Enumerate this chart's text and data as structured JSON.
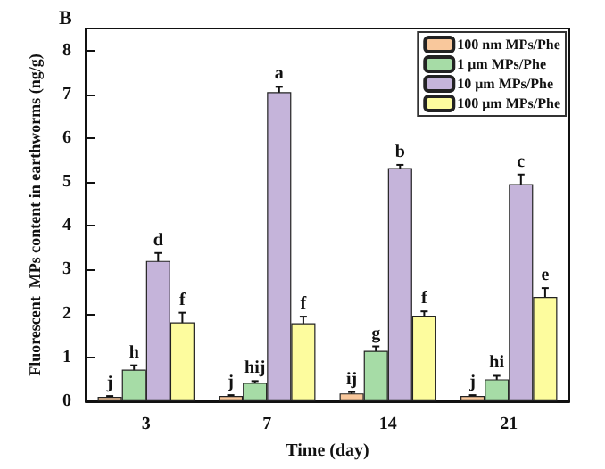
{
  "chart_data": {
    "type": "bar",
    "title": "B",
    "xlabel": "Time (day)",
    "ylabel": "Fluorescent  MPs content in earthworms (ng/g)",
    "categories": [
      "3",
      "7",
      "14",
      "21"
    ],
    "series": [
      {
        "name": "100 nm MPs/Phe",
        "color": "#f9c89c",
        "values": [
          0.1,
          0.12,
          0.18,
          0.12
        ],
        "errors": [
          0.02,
          0.02,
          0.03,
          0.02
        ]
      },
      {
        "name": "1 μm MPs/Phe",
        "color": "#a6dca6",
        "values": [
          0.72,
          0.42,
          1.15,
          0.5
        ],
        "errors": [
          0.1,
          0.04,
          0.1,
          0.08
        ]
      },
      {
        "name": "10 μm MPs/Phe",
        "color": "#c5b4da",
        "values": [
          3.2,
          7.05,
          5.32,
          4.95
        ],
        "errors": [
          0.18,
          0.12,
          0.07,
          0.22
        ]
      },
      {
        "name": "100 μm MPs/Phe",
        "color": "#fdfc9e",
        "values": [
          1.8,
          1.78,
          1.95,
          2.38
        ],
        "errors": [
          0.22,
          0.15,
          0.1,
          0.2
        ]
      }
    ],
    "annotations": [
      {
        "text": "j",
        "x": "3",
        "y": 0.1
      },
      {
        "text": "h",
        "x": "3",
        "y": 0.72
      },
      {
        "text": "d",
        "x": "3",
        "y": 3.2
      },
      {
        "text": "f",
        "x": "3",
        "y": 1.8
      },
      {
        "text": "j",
        "x": "7",
        "y": 0.12
      },
      {
        "text": "hij",
        "x": "7",
        "y": 0.42
      },
      {
        "text": "a",
        "x": "7",
        "y": 7.05
      },
      {
        "text": "f",
        "x": "7",
        "y": 1.78
      },
      {
        "text": "ij",
        "x": "14",
        "y": 0.18
      },
      {
        "text": "g",
        "x": "14",
        "y": 1.15
      },
      {
        "text": "b",
        "x": "14",
        "y": 5.32
      },
      {
        "text": "f",
        "x": "14",
        "y": 1.95
      },
      {
        "text": "j",
        "x": "21",
        "y": 0.12
      },
      {
        "text": "hi",
        "x": "21",
        "y": 0.5
      },
      {
        "text": "c",
        "x": "21",
        "y": 4.95
      },
      {
        "text": "e",
        "x": "21",
        "y": 2.38
      }
    ],
    "ylim": [
      0,
      8.5
    ],
    "yticks": [
      0,
      1,
      2,
      3,
      4,
      5,
      6,
      7,
      8
    ],
    "grid": false,
    "legend": "top right"
  }
}
